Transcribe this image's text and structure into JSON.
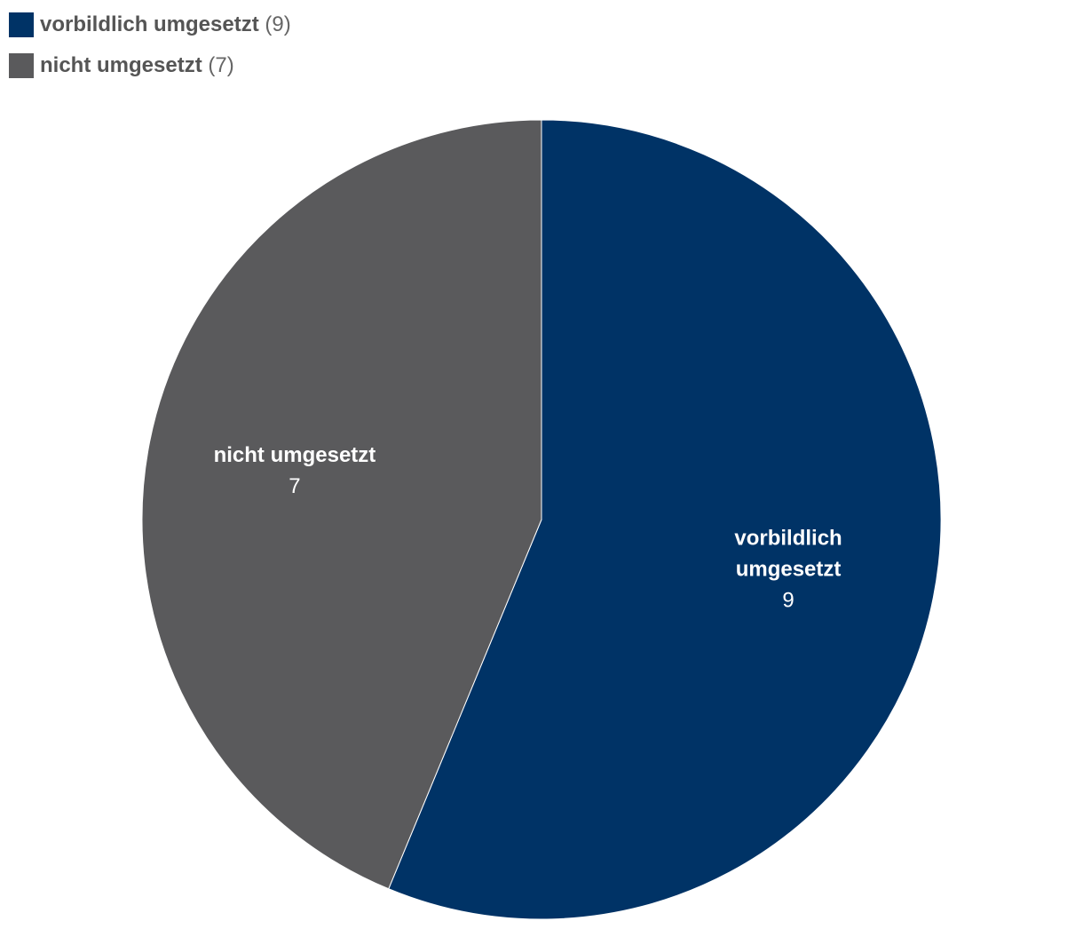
{
  "legend": [
    {
      "name": "vorbildlich umgesetzt",
      "count": "(9)",
      "color": "#003366"
    },
    {
      "name": "nicht umgesetzt",
      "count": "(7)",
      "color": "#5a5a5c"
    }
  ],
  "chart_data": {
    "type": "pie",
    "slices": [
      {
        "name": "vorbildlich umgesetzt",
        "value": 9,
        "color": "#003366",
        "label_lines": [
          "vorbildlich",
          "umgesetzt"
        ],
        "value_label": "9"
      },
      {
        "name": "nicht umgesetzt",
        "value": 7,
        "color": "#5a5a5c",
        "label_lines": [
          "nicht umgesetzt"
        ],
        "value_label": "7"
      }
    ],
    "start": "12 o'clock",
    "direction": "clockwise",
    "legend_position": "top-left"
  }
}
